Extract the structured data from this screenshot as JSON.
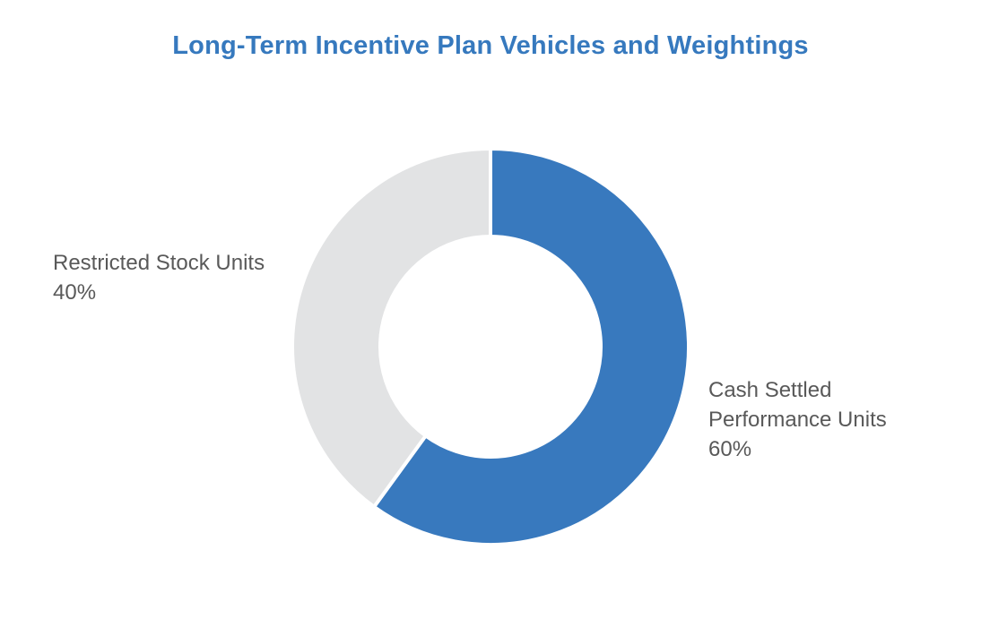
{
  "title": "Long-Term Incentive Plan Vehicles and Weightings",
  "colors": {
    "title": "#3679BE",
    "label_text": "#595959",
    "slice_border": "#FFFFFF",
    "background": "#FFFFFF"
  },
  "chart_data": {
    "type": "pie",
    "subtype": "donut",
    "title": "Long-Term Incentive Plan Vehicles and Weightings",
    "start_angle_deg": 0,
    "direction": "clockwise",
    "inner_radius_ratio": 0.55,
    "legend": "none",
    "data_labels": "outside",
    "slices": [
      {
        "label": "Cash Settled Performance Units",
        "value": 60,
        "pct_label": "60%",
        "color": "#3879BE",
        "label_side": "right"
      },
      {
        "label": "Restricted Stock Units",
        "value": 40,
        "pct_label": "40%",
        "color": "#E2E3E4",
        "label_side": "left"
      }
    ]
  }
}
